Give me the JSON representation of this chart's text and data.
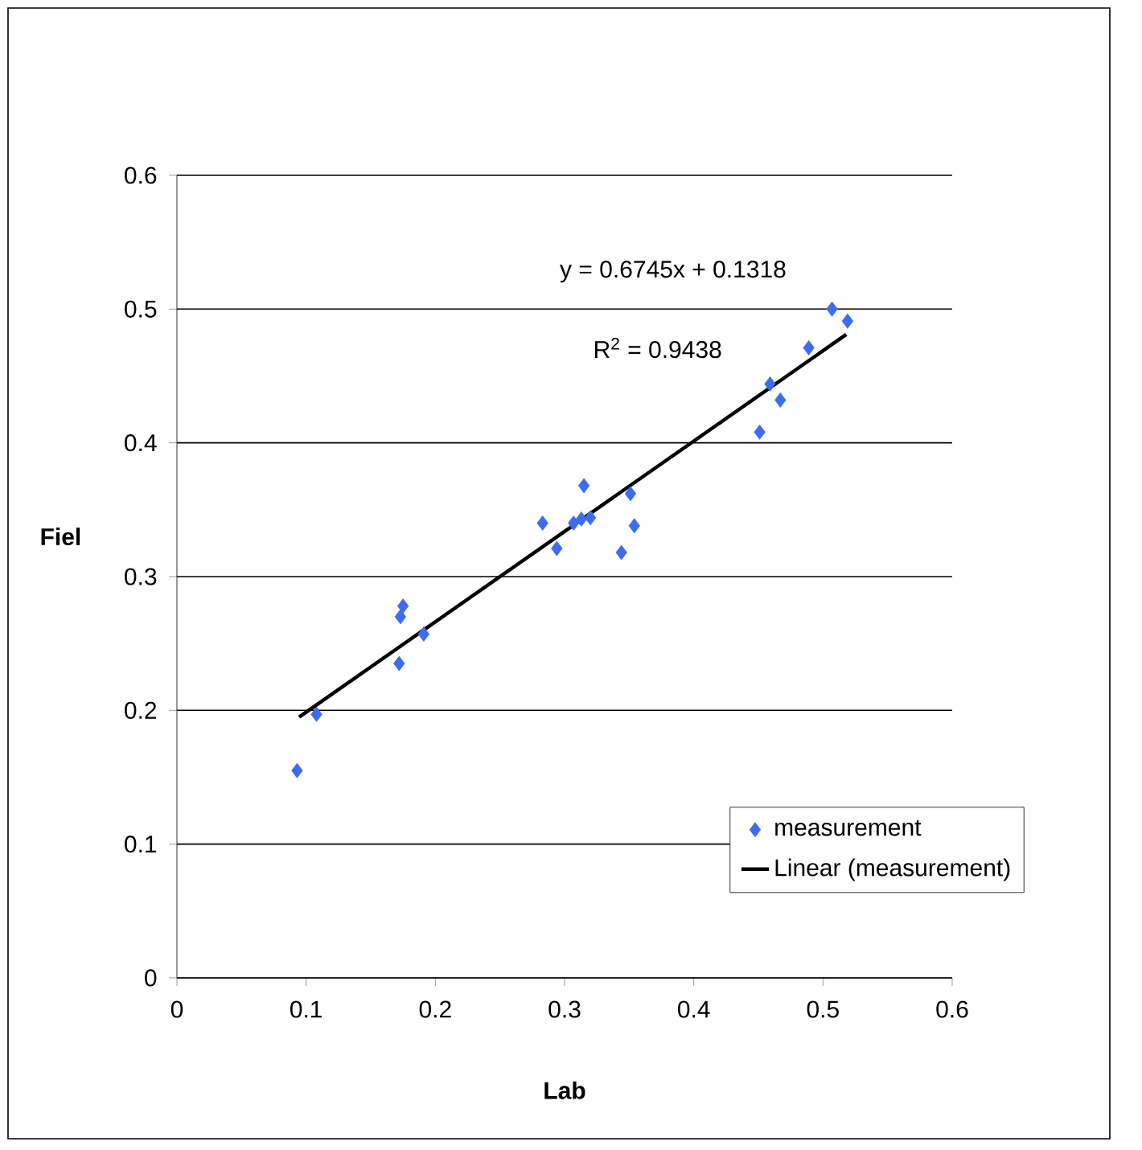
{
  "chart_data": {
    "type": "scatter",
    "xlabel": "Lab",
    "ylabel": "Fiel",
    "xlim": [
      0,
      0.6
    ],
    "xticks": [
      0,
      0.1,
      0.2,
      0.3,
      0.4,
      0.5,
      0.6
    ],
    "ylim": [
      0,
      0.6
    ],
    "yticks": [
      0,
      0.1,
      0.2,
      0.3,
      0.4,
      0.5,
      0.6
    ],
    "grid": "y",
    "legend": "bottom right",
    "marker": "diamond",
    "annotations": [
      "y = 0.6745x + 0.1318",
      "R$^{2}$ = 0.9438"
    ],
    "series": [
      {
        "name": "measurement",
        "color": "#3c6cf0",
        "x": [
          0.093,
          0.108,
          0.175,
          0.173,
          0.191,
          0.172,
          0.315,
          0.283,
          0.294,
          0.307,
          0.313,
          0.32,
          0.351,
          0.354,
          0.344,
          0.507,
          0.519,
          0.489,
          0.459,
          0.467,
          0.451
        ],
        "values": [
          0.155,
          0.197,
          0.278,
          0.27,
          0.257,
          0.235,
          0.368,
          0.34,
          0.321,
          0.34,
          0.343,
          0.344,
          0.362,
          0.338,
          0.318,
          0.5,
          0.491,
          0.471,
          0.444,
          0.432,
          0.408
        ]
      },
      {
        "name": "Linear (measurement)",
        "type": "line",
        "color": "#000000",
        "line_style": "solid",
        "marker": "none",
        "x": [
          0.0946,
          0.518
        ],
        "values": [
          0.195,
          0.481
        ]
      }
    ]
  }
}
